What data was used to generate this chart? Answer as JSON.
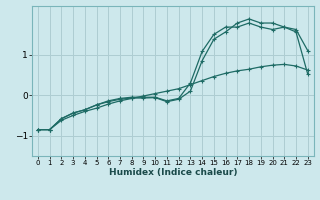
{
  "xlabel": "Humidex (Indice chaleur)",
  "ylabel": "",
  "bg_color": "#cde8ec",
  "grid_color": "#aecdd2",
  "line_color": "#1e6b65",
  "xlim": [
    -0.5,
    23.5
  ],
  "ylim": [
    -1.5,
    2.2
  ],
  "yticks": [
    -1,
    0,
    1
  ],
  "xticks": [
    0,
    1,
    2,
    3,
    4,
    5,
    6,
    7,
    8,
    9,
    10,
    11,
    12,
    13,
    14,
    15,
    16,
    17,
    18,
    19,
    20,
    21,
    22,
    23
  ],
  "series1_x": [
    0,
    1,
    2,
    3,
    4,
    5,
    6,
    7,
    8,
    9,
    10,
    11,
    12,
    13,
    14,
    15,
    16,
    17,
    18,
    19,
    20,
    21,
    22,
    23
  ],
  "series1_y": [
    -0.85,
    -0.85,
    -0.62,
    -0.5,
    -0.4,
    -0.32,
    -0.22,
    -0.14,
    -0.08,
    -0.02,
    0.04,
    0.1,
    0.16,
    0.26,
    0.36,
    0.46,
    0.54,
    0.6,
    0.64,
    0.7,
    0.74,
    0.76,
    0.72,
    0.62
  ],
  "series2_x": [
    0,
    1,
    2,
    3,
    4,
    5,
    6,
    7,
    8,
    9,
    10,
    11,
    12,
    13,
    14,
    15,
    16,
    17,
    18,
    19,
    20,
    21,
    22,
    23
  ],
  "series2_y": [
    -0.85,
    -0.85,
    -0.58,
    -0.44,
    -0.36,
    -0.24,
    -0.14,
    -0.08,
    -0.05,
    -0.05,
    -0.05,
    -0.14,
    -0.08,
    0.3,
    1.08,
    1.5,
    1.68,
    1.68,
    1.78,
    1.68,
    1.62,
    1.68,
    1.62,
    1.1
  ],
  "series3_x": [
    0,
    1,
    2,
    3,
    4,
    5,
    6,
    7,
    8,
    9,
    10,
    11,
    12,
    13,
    14,
    15,
    16,
    17,
    18,
    19,
    20,
    21,
    22,
    23
  ],
  "series3_y": [
    -0.85,
    -0.85,
    -0.58,
    -0.44,
    -0.36,
    -0.24,
    -0.16,
    -0.1,
    -0.07,
    -0.07,
    -0.06,
    -0.16,
    -0.1,
    0.1,
    0.85,
    1.38,
    1.56,
    1.78,
    1.88,
    1.78,
    1.78,
    1.68,
    1.56,
    0.52
  ]
}
